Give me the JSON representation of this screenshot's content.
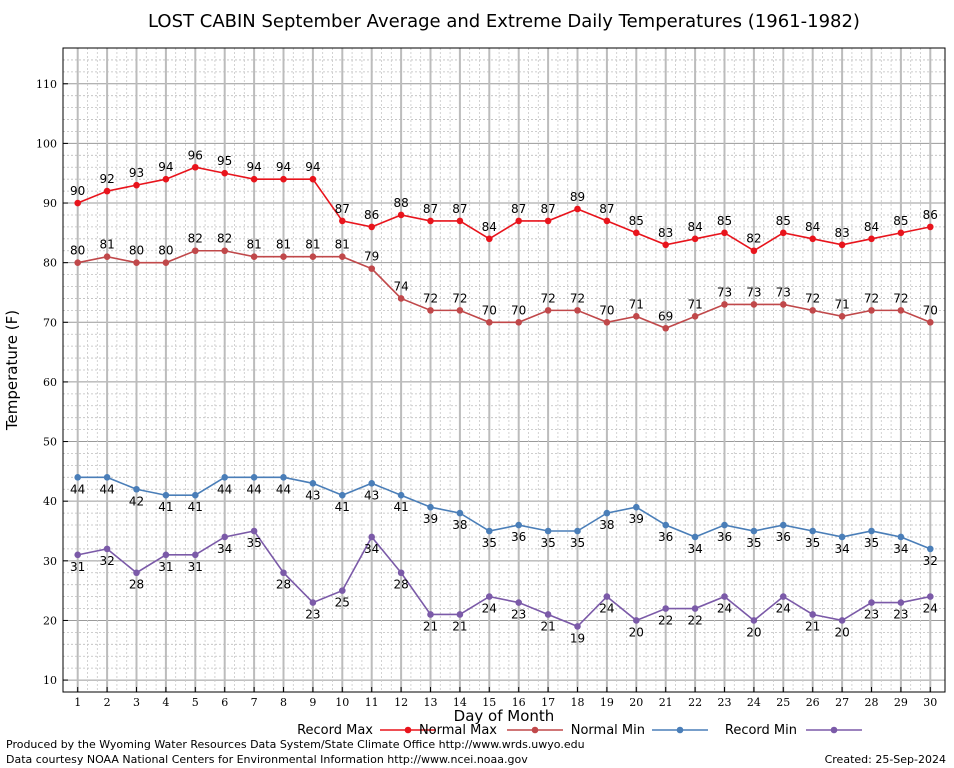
{
  "chart_data": {
    "type": "line",
    "title": "LOST CABIN September Average and Extreme Daily Temperatures (1961-1982)",
    "xlabel": "Day of Month",
    "ylabel": "Temperature (F)",
    "x": [
      1,
      2,
      3,
      4,
      5,
      6,
      7,
      8,
      9,
      10,
      11,
      12,
      13,
      14,
      15,
      16,
      17,
      18,
      19,
      20,
      21,
      22,
      23,
      24,
      25,
      26,
      27,
      28,
      29,
      30
    ],
    "xlim": [
      0.5,
      30.5
    ],
    "ylim": [
      8,
      116
    ],
    "yticks": [
      10,
      20,
      30,
      40,
      50,
      60,
      70,
      80,
      90,
      100,
      110
    ],
    "grid": true,
    "legend_position": "bottom",
    "series": [
      {
        "name": "Record Max",
        "color": "#e8141c",
        "label_position": "above",
        "values": [
          90,
          92,
          93,
          94,
          96,
          95,
          94,
          94,
          94,
          87,
          86,
          88,
          87,
          87,
          84,
          87,
          87,
          89,
          87,
          85,
          83,
          84,
          85,
          82,
          85,
          84,
          83,
          84,
          85,
          86
        ]
      },
      {
        "name": "Normal Max",
        "color": "#c0484a",
        "label_position": "above",
        "values": [
          80,
          81,
          80,
          80,
          82,
          82,
          81,
          81,
          81,
          81,
          79,
          74,
          72,
          72,
          70,
          70,
          72,
          72,
          70,
          71,
          69,
          71,
          73,
          73,
          73,
          72,
          71,
          72,
          72,
          70
        ]
      },
      {
        "name": "Normal Min",
        "color": "#4a7eb8",
        "label_position": "below",
        "values": [
          44,
          44,
          42,
          41,
          41,
          44,
          44,
          44,
          43,
          41,
          43,
          41,
          39,
          38,
          35,
          36,
          35,
          35,
          38,
          39,
          36,
          34,
          36,
          35,
          36,
          35,
          34,
          35,
          34,
          32
        ]
      },
      {
        "name": "Record Min",
        "color": "#7b5aa8",
        "label_position": "below",
        "values": [
          31,
          32,
          28,
          31,
          31,
          34,
          35,
          28,
          23,
          25,
          34,
          28,
          21,
          21,
          24,
          23,
          21,
          19,
          24,
          20,
          22,
          22,
          24,
          20,
          24,
          21,
          20,
          23,
          23,
          24
        ]
      }
    ]
  },
  "footer": {
    "line1": "Produced by the Wyoming Water Resources Data System/State Climate Office http://www.wrds.uwyo.edu",
    "line2": "Data courtesy NOAA National Centers for Environmental Information http://www.ncei.noaa.gov",
    "created": "Created:  25-Sep-2024"
  }
}
